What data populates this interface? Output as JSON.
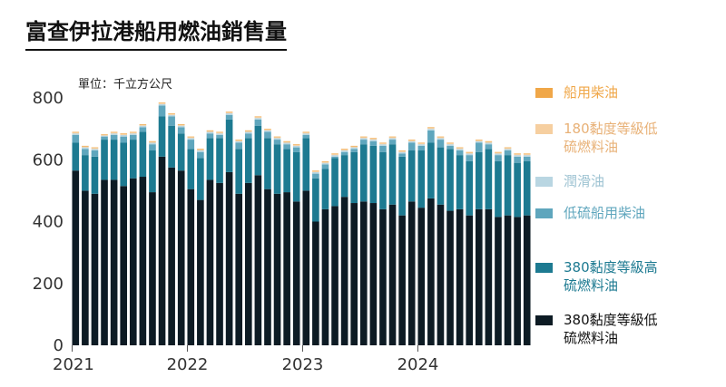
{
  "chart_data": {
    "type": "bar",
    "stacked": true,
    "title": "富查伊拉港船用燃油銷售量",
    "unit_label": "單位：千立方公尺",
    "ylim": [
      0,
      800
    ],
    "yticks": [
      "0",
      "200",
      "400",
      "600",
      "800"
    ],
    "xtick_labels": [
      {
        "label": "2021",
        "index": 0
      },
      {
        "label": "2022",
        "index": 12
      },
      {
        "label": "2023",
        "index": 24
      },
      {
        "label": "2024",
        "index": 36
      }
    ],
    "grid": false,
    "legend_position": "right",
    "series": [
      {
        "name": "380黏度等級低\n硫燃料油",
        "color": "#0d1b24",
        "values": [
          565,
          500,
          490,
          535,
          535,
          515,
          540,
          545,
          495,
          610,
          575,
          565,
          505,
          470,
          535,
          525,
          560,
          490,
          525,
          550,
          505,
          490,
          495,
          465,
          500,
          400,
          440,
          450,
          480,
          460,
          465,
          460,
          440,
          455,
          420,
          465,
          445,
          475,
          455,
          435,
          440,
          420,
          440,
          440,
          415,
          420,
          415,
          420
        ]
      },
      {
        "name": "380黏度等級高\n硫燃料油",
        "color": "#1d7a91",
        "values": [
          90,
          115,
          120,
          130,
          130,
          140,
          125,
          145,
          135,
          130,
          135,
          120,
          130,
          135,
          135,
          145,
          170,
          145,
          145,
          160,
          165,
          160,
          140,
          160,
          170,
          140,
          130,
          155,
          135,
          165,
          185,
          185,
          185,
          195,
          190,
          165,
          185,
          180,
          185,
          200,
          175,
          175,
          185,
          195,
          180,
          195,
          175,
          175
        ]
      },
      {
        "name": "低硫船用柴油",
        "color": "#5fa6bd",
        "values": [
          25,
          20,
          20,
          10,
          15,
          20,
          15,
          15,
          20,
          35,
          30,
          20,
          30,
          20,
          15,
          10,
          15,
          20,
          15,
          20,
          20,
          15,
          15,
          15,
          10,
          15,
          15,
          5,
          10,
          10,
          15,
          15,
          20,
          15,
          10,
          25,
          15,
          40,
          25,
          10,
          15,
          20,
          30,
          15,
          20,
          15,
          20,
          15
        ]
      },
      {
        "name": "潤滑油",
        "color": "#b9d6e2",
        "values": [
          5,
          5,
          5,
          3,
          5,
          5,
          5,
          5,
          5,
          5,
          5,
          5,
          5,
          5,
          5,
          5,
          5,
          5,
          5,
          5,
          5,
          5,
          5,
          5,
          5,
          5,
          5,
          5,
          5,
          5,
          5,
          5,
          5,
          5,
          5,
          5,
          5,
          5,
          5,
          5,
          5,
          5,
          5,
          5,
          5,
          5,
          5,
          5
        ]
      },
      {
        "name": "180黏度等級低\n硫燃料油",
        "color": "#f6cfa0",
        "values": [
          3,
          3,
          3,
          2,
          3,
          3,
          3,
          3,
          3,
          3,
          3,
          3,
          3,
          3,
          3,
          3,
          3,
          3,
          3,
          3,
          3,
          3,
          3,
          3,
          3,
          3,
          3,
          3,
          3,
          3,
          3,
          3,
          3,
          3,
          3,
          3,
          3,
          3,
          3,
          3,
          3,
          3,
          3,
          3,
          3,
          3,
          3,
          3
        ]
      },
      {
        "name": "船用柴油",
        "color": "#f0a748",
        "values": [
          2,
          2,
          2,
          2,
          2,
          2,
          2,
          2,
          2,
          2,
          2,
          2,
          2,
          2,
          2,
          2,
          2,
          2,
          2,
          2,
          2,
          2,
          2,
          2,
          2,
          2,
          2,
          2,
          2,
          2,
          2,
          2,
          2,
          2,
          2,
          2,
          2,
          2,
          2,
          2,
          2,
          2,
          2,
          2,
          2,
          2,
          2,
          2
        ]
      }
    ]
  },
  "legend_order": [
    5,
    4,
    3,
    2,
    1,
    0
  ],
  "legend_text_colors": [
    "#111111",
    "#1d7a91",
    "#5fa6bd",
    "#9ec3d2",
    "#e8b177",
    "#f0a748"
  ]
}
